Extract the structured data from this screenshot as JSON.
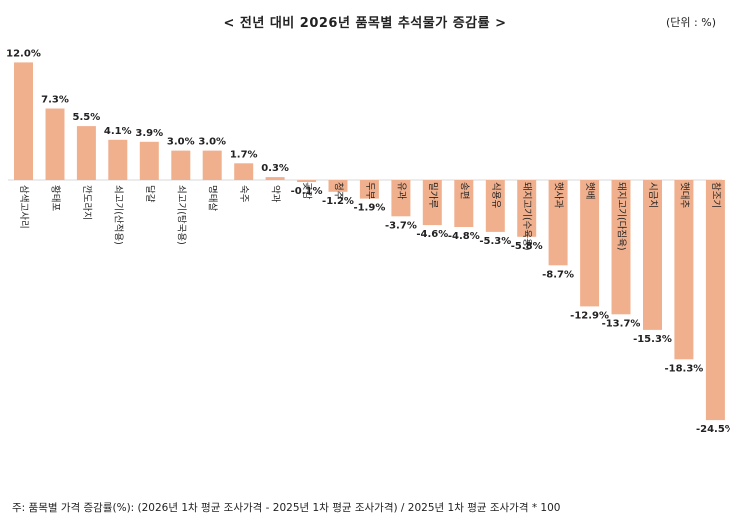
{
  "title": "< 전년 대비 2026년 품목별 추석물가 증감률 >",
  "unit": "(단위 : %)",
  "footnote": "주: 품목별 가격 증감률(%): (2026년 1차 평균 조사가격 - 2025년 1차 평균 조사가격) / 2025년 1차 평균 조사가격 * 100",
  "bar_color": "#f0b08e",
  "chart_data": {
    "type": "bar",
    "categories": [
      "삼색고사리",
      "황태포",
      "깐도라지",
      "쇠고기(산적용)",
      "달걀",
      "쇠고기(탕국용)",
      "명태살",
      "숙주",
      "약과",
      "곶감",
      "청주",
      "두부",
      "유과",
      "밀가루",
      "송편",
      "식용유",
      "돼지고기(수육용)",
      "햇사과",
      "햇배",
      "돼지고기(다짐육)",
      "시금치",
      "햇대추",
      "참조기"
    ],
    "values": [
      12.0,
      7.3,
      5.5,
      4.1,
      3.9,
      3.0,
      3.0,
      1.7,
      0.3,
      -0.1,
      -1.2,
      -1.9,
      -3.7,
      -4.6,
      -4.8,
      -5.3,
      -5.8,
      -8.7,
      -12.9,
      -13.7,
      -15.3,
      -18.3,
      -24.5
    ],
    "data_labels": [
      "12.0%",
      "7.3%",
      "5.5%",
      "4.1%",
      "3.9%",
      "3.0%",
      "3.0%",
      "1.7%",
      "0.3%",
      "-0.1%",
      "-1.2%",
      "-1.9%",
      "-3.7%",
      "-4.6%",
      "-4.8%",
      "-5.3%",
      "-5.8%",
      "-8.7%",
      "-12.9%",
      "-13.7%",
      "-15.3%",
      "-18.3%",
      "-24.5%"
    ],
    "title": "< 전년 대비 2026년 품목별 추석물가 증감률 >",
    "xlabel": "",
    "ylabel": "",
    "grid": false
  }
}
